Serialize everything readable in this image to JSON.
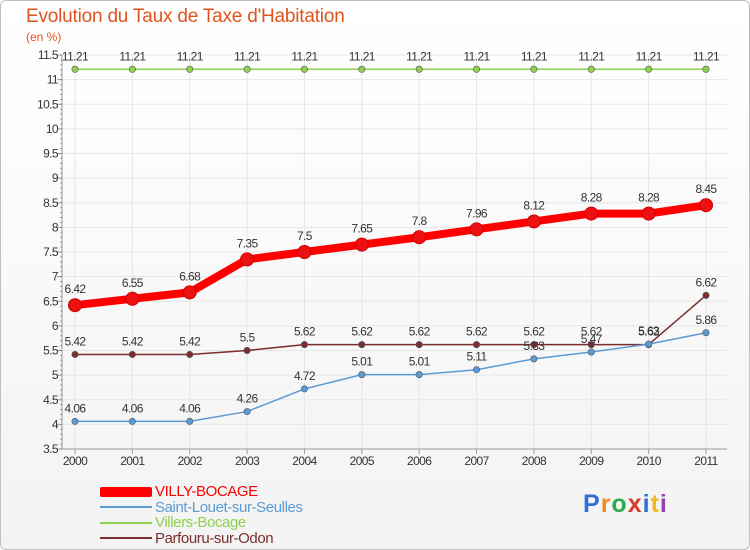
{
  "title": "Evolution du Taux de Taxe d'Habitation",
  "unit_label": "(en %)",
  "logo": {
    "letters": [
      "P",
      "r",
      "o",
      "x",
      "i",
      "t",
      "i"
    ],
    "colors": [
      "#2f6fd6",
      "#f08c1e",
      "#2fa84f",
      "#d93b2b",
      "#2f6fd6",
      "#f5b71c",
      "#8e44ad"
    ]
  },
  "chart_data": {
    "type": "line",
    "title": "Evolution du Taux de Taxe d'Habitation",
    "ylabel": "(en %)",
    "xlabel": "",
    "x": [
      "2000",
      "2001",
      "2002",
      "2003",
      "2004",
      "2005",
      "2006",
      "2007",
      "2008",
      "2009",
      "2010",
      "2011"
    ],
    "ylim": [
      3.5,
      11.5
    ],
    "yticks": [
      "3.5",
      "4",
      "4.5",
      "5",
      "5.5",
      "6",
      "6.5",
      "7",
      "7.5",
      "8",
      "8.5",
      "9",
      "9.5",
      "10",
      "10.5",
      "11",
      "11.5"
    ],
    "legend_position": "bottom-left",
    "series": [
      {
        "name": "Villers-Bocage",
        "color": "#8fd14f",
        "values": [
          11.21,
          11.21,
          11.21,
          11.21,
          11.21,
          11.21,
          11.21,
          11.21,
          11.21,
          11.21,
          11.21,
          11.21
        ],
        "labels": [
          "11.21",
          "11.21",
          "11.21",
          "11.21",
          "11.21",
          "11.21",
          "11.21",
          "11.21",
          "11.21",
          "11.21",
          "11.21",
          "11.21"
        ]
      },
      {
        "name": "Parfouru-sur-Odon",
        "color": "#7a2e2e",
        "values": [
          5.42,
          5.42,
          5.42,
          5.5,
          5.62,
          5.62,
          5.62,
          5.62,
          5.62,
          5.62,
          5.62,
          6.62
        ],
        "labels": [
          "5.42",
          "5.42",
          "5.42",
          "5.5",
          "5.62",
          "5.62",
          "5.62",
          "5.62",
          "5.62",
          "5.62",
          "5.62",
          "6.62"
        ]
      },
      {
        "name": "Saint-Louet-sur-Seulles",
        "color": "#5b9bd5",
        "values": [
          4.06,
          4.06,
          4.06,
          4.26,
          4.72,
          5.01,
          5.01,
          5.11,
          5.33,
          5.47,
          5.63,
          5.86
        ],
        "labels": [
          "4.06",
          "4.06",
          "4.06",
          "4.26",
          "4.72",
          "5.01",
          "5.01",
          "5.11",
          "5.33",
          "5.47",
          "5.63",
          "5.86"
        ]
      },
      {
        "name": "VILLY-BOCAGE",
        "color": "#ff0000",
        "values": [
          6.42,
          6.55,
          6.68,
          7.35,
          7.5,
          7.65,
          7.8,
          7.96,
          8.12,
          8.28,
          8.28,
          8.45
        ],
        "labels": [
          "6.42",
          "6.55",
          "6.68",
          "7.35",
          "7.5",
          "7.65",
          "7.8",
          "7.96",
          "8.12",
          "8.28",
          "8.28",
          "8.45"
        ]
      }
    ]
  },
  "legend": [
    {
      "label": "VILLY-BOCAGE",
      "color": "#ff0000"
    },
    {
      "label": "Saint-Louet-sur-Seulles",
      "color": "#5b9bd5"
    },
    {
      "label": "Villers-Bocage",
      "color": "#8fd14f"
    },
    {
      "label": "Parfouru-sur-Odon",
      "color": "#7a2e2e"
    }
  ]
}
